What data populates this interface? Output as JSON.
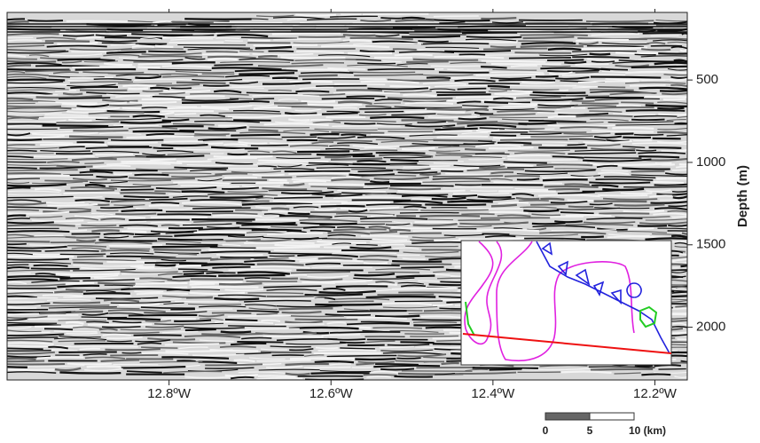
{
  "chart_data": {
    "type": "seismic-section",
    "x_label": null,
    "y_label": "Depth (m)",
    "xlim": [
      -13.0,
      -12.16
    ],
    "xticks": [
      {
        "value": -12.8,
        "label": "12.8ºW"
      },
      {
        "value": -12.6,
        "label": "12.6ºW"
      },
      {
        "value": -12.4,
        "label": "12.4ºW"
      },
      {
        "value": -12.2,
        "label": "12.2ºW"
      }
    ],
    "ylim": [
      2320,
      90
    ],
    "yticks": [
      500,
      1000,
      1500,
      2000
    ],
    "y_axis_side": "right"
  },
  "scale_bar": {
    "labels": [
      "0",
      "5",
      "10 (km)"
    ]
  }
}
